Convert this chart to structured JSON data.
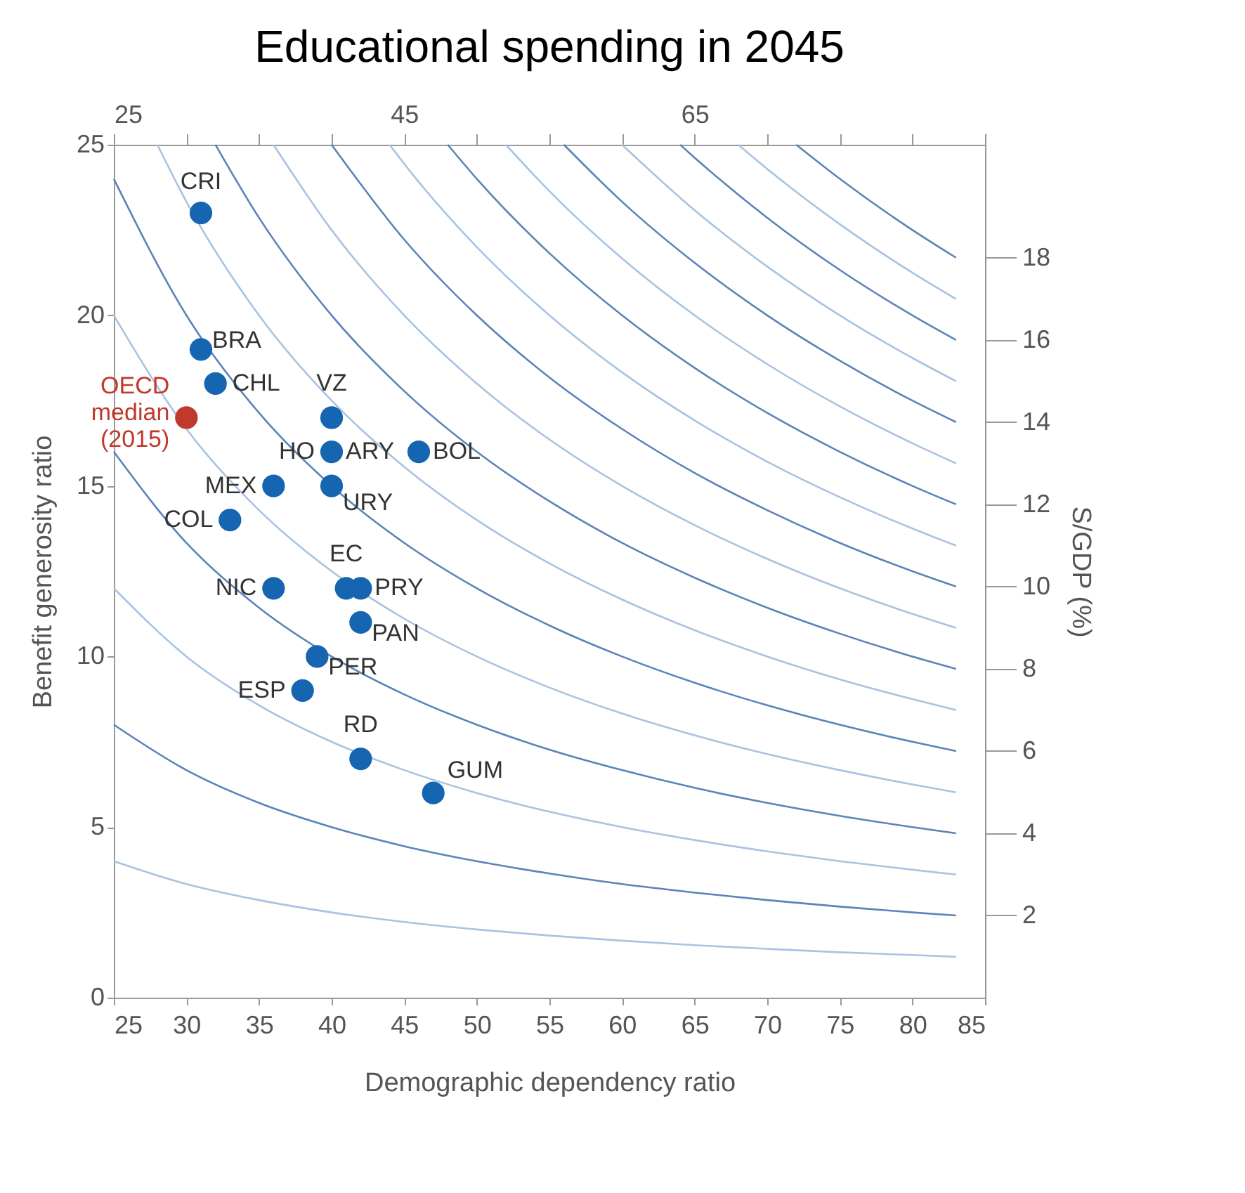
{
  "chart_data": {
    "type": "scatter",
    "title": "Educational spending in 2045",
    "xlabel": "Demographic dependency ratio",
    "ylabel": "Benefit generosity ratio",
    "y2label": "S/GDP (%)",
    "xlim": [
      25,
      85
    ],
    "xticks": [
      25,
      30,
      35,
      40,
      45,
      50,
      55,
      60,
      65,
      70,
      75,
      80,
      85
    ],
    "x2lim": [
      25,
      85
    ],
    "x2ticks": [
      25,
      {
        "value": 30,
        "label": null
      },
      {
        "value": 35,
        "label": null
      },
      {
        "value": 40,
        "label": null
      },
      45,
      {
        "value": 50,
        "label": null
      },
      {
        "value": 55,
        "label": null
      },
      {
        "value": 60,
        "label": null
      },
      65,
      {
        "value": 70,
        "label": null
      },
      {
        "value": 75,
        "label": null
      },
      {
        "value": 80,
        "label": null
      },
      {
        "value": 85,
        "label": null
      }
    ],
    "ylim": [
      0,
      25
    ],
    "yticks": [
      0,
      5,
      10,
      15,
      20,
      25
    ],
    "y2lim": [
      0,
      20.75
    ],
    "y2ticks": [
      2,
      4,
      6,
      8,
      10,
      12,
      14,
      16,
      18
    ],
    "grid": false,
    "line_style": "solid",
    "series": [
      {
        "type": "line",
        "color": "#a9c3e0",
        "x": [
          25,
          30,
          35,
          40,
          45,
          50,
          55,
          60,
          65,
          70,
          75,
          80,
          83
        ],
        "values": [
          4,
          3.33,
          2.86,
          2.5,
          2.22,
          2,
          1.82,
          1.67,
          1.54,
          1.43,
          1.33,
          1.25,
          1.2
        ]
      },
      {
        "type": "line",
        "color": "#5b84b8",
        "x": [
          25,
          30,
          35,
          40,
          45,
          50,
          55,
          60,
          65,
          70,
          75,
          80,
          83
        ],
        "values": [
          8,
          6.67,
          5.71,
          5,
          4.44,
          4,
          3.64,
          3.33,
          3.08,
          2.86,
          2.67,
          2.5,
          2.41
        ]
      },
      {
        "type": "line",
        "color": "#a9c3e0",
        "x": [
          25,
          30,
          35,
          40,
          45,
          50,
          55,
          60,
          65,
          70,
          75,
          80,
          83
        ],
        "values": [
          12,
          10,
          8.57,
          7.5,
          6.67,
          6,
          5.45,
          5,
          4.62,
          4.29,
          4,
          3.75,
          3.61
        ]
      },
      {
        "type": "line",
        "color": "#5b84b8",
        "x": [
          25,
          30,
          35,
          40,
          45,
          50,
          55,
          60,
          65,
          70,
          75,
          80,
          83
        ],
        "values": [
          16,
          13.33,
          11.43,
          10,
          8.89,
          8,
          7.27,
          6.67,
          6.15,
          5.71,
          5.33,
          5,
          4.82
        ]
      },
      {
        "type": "line",
        "color": "#a9c3e0",
        "x": [
          25,
          30,
          35,
          40,
          45,
          50,
          55,
          60,
          65,
          70,
          75,
          80,
          83
        ],
        "values": [
          20,
          16.67,
          14.29,
          12.5,
          11.11,
          10,
          9.09,
          8.33,
          7.69,
          7.14,
          6.67,
          6.25,
          6.02
        ]
      },
      {
        "type": "line",
        "color": "#5b84b8",
        "x": [
          25,
          30,
          35,
          40,
          45,
          50,
          55,
          60,
          65,
          70,
          75,
          80,
          83
        ],
        "values": [
          24,
          20,
          17.14,
          15,
          13.33,
          12,
          10.91,
          10,
          9.23,
          8.57,
          8,
          7.5,
          7.23
        ]
      },
      {
        "type": "line",
        "color": "#a9c3e0",
        "x": [
          28,
          30,
          35,
          40,
          45,
          50,
          55,
          60,
          65,
          70,
          75,
          80,
          83
        ],
        "values": [
          25,
          23.33,
          20,
          17.5,
          15.56,
          14,
          12.73,
          11.67,
          10.77,
          10,
          9.33,
          8.75,
          8.43
        ]
      },
      {
        "type": "line",
        "color": "#5b84b8",
        "x": [
          32,
          35,
          40,
          45,
          50,
          55,
          60,
          65,
          70,
          75,
          80,
          83
        ],
        "values": [
          25,
          22.86,
          20,
          17.78,
          16,
          14.55,
          13.33,
          12.31,
          11.43,
          10.67,
          10,
          9.64
        ]
      },
      {
        "type": "line",
        "color": "#a9c3e0",
        "x": [
          36,
          40,
          45,
          50,
          55,
          60,
          65,
          70,
          75,
          80,
          83
        ],
        "values": [
          25,
          22.5,
          20,
          18,
          16.36,
          15,
          13.85,
          12.86,
          12,
          11.25,
          10.84
        ]
      },
      {
        "type": "line",
        "color": "#5b84b8",
        "x": [
          40,
          45,
          50,
          55,
          60,
          65,
          70,
          75,
          80,
          83
        ],
        "values": [
          25,
          22.22,
          20,
          18.18,
          16.67,
          15.38,
          14.29,
          13.33,
          12.5,
          12.05
        ]
      },
      {
        "type": "line",
        "color": "#a9c3e0",
        "x": [
          44,
          45,
          50,
          55,
          60,
          65,
          70,
          75,
          80,
          83
        ],
        "values": [
          25,
          24.44,
          22,
          20,
          18.33,
          16.92,
          15.71,
          14.67,
          13.75,
          13.25
        ]
      },
      {
        "type": "line",
        "color": "#5b84b8",
        "x": [
          48,
          50,
          55,
          60,
          65,
          70,
          75,
          80,
          83
        ],
        "values": [
          25,
          24,
          21.82,
          20,
          18.46,
          17.14,
          16,
          15,
          14.46
        ]
      },
      {
        "type": "line",
        "color": "#a9c3e0",
        "x": [
          52,
          55,
          60,
          65,
          70,
          75,
          80,
          83
        ],
        "values": [
          25,
          23.64,
          21.67,
          20,
          18.57,
          17.33,
          16.25,
          15.66
        ]
      },
      {
        "type": "line",
        "color": "#5b84b8",
        "x": [
          56,
          60,
          65,
          70,
          75,
          80,
          83
        ],
        "values": [
          25,
          23.33,
          21.54,
          20,
          18.67,
          17.5,
          16.87
        ]
      },
      {
        "type": "line",
        "color": "#a9c3e0",
        "x": [
          60,
          65,
          70,
          75,
          80,
          83
        ],
        "values": [
          25,
          23.08,
          21.43,
          20,
          18.75,
          18.07
        ]
      },
      {
        "type": "line",
        "color": "#5b84b8",
        "x": [
          64,
          65,
          70,
          75,
          80,
          83
        ],
        "values": [
          25,
          24.62,
          22.86,
          21.33,
          20,
          19.28
        ]
      },
      {
        "type": "line",
        "color": "#a9c3e0",
        "x": [
          68,
          70,
          75,
          80,
          83
        ],
        "values": [
          25,
          24.29,
          22.67,
          21.25,
          20.48
        ]
      },
      {
        "type": "line",
        "color": "#5b84b8",
        "x": [
          72,
          75,
          80,
          83
        ],
        "values": [
          25,
          24,
          22.5,
          21.69
        ]
      },
      {
        "marker": "circle",
        "color": "#1565b0",
        "x": [
          31,
          31,
          32,
          40,
          40,
          46,
          40,
          36,
          33,
          36,
          41,
          42,
          42,
          39,
          38,
          42,
          47
        ],
        "values": [
          23,
          19,
          18,
          17,
          16,
          16,
          15,
          15,
          14,
          12,
          12,
          12,
          11,
          10,
          9,
          7,
          6
        ]
      },
      {
        "marker": "circle",
        "color": "#c0392b",
        "x": [
          30
        ],
        "values": [
          17
        ]
      }
    ],
    "annotations": [
      {
        "text": "CRI",
        "x": 31,
        "y": 23
      },
      {
        "text": "BRA",
        "x": 31,
        "y": 19
      },
      {
        "text": "CHL",
        "x": 32,
        "y": 18
      },
      {
        "text": "VZ",
        "x": 40,
        "y": 17
      },
      {
        "text": "HO",
        "x": 40,
        "y": 16
      },
      {
        "text": "ARY",
        "x": 40,
        "y": 16
      },
      {
        "text": "BOL",
        "x": 46,
        "y": 16
      },
      {
        "text": "URY",
        "x": 40,
        "y": 15
      },
      {
        "text": "MEX",
        "x": 36,
        "y": 15
      },
      {
        "text": "COL",
        "x": 33,
        "y": 14
      },
      {
        "text": "NIC",
        "x": 36,
        "y": 12
      },
      {
        "text": "EC",
        "x": 41,
        "y": 12
      },
      {
        "text": "PRY",
        "x": 42,
        "y": 12
      },
      {
        "text": "PAN",
        "x": 42,
        "y": 11
      },
      {
        "text": "PER",
        "x": 39,
        "y": 10
      },
      {
        "text": "ESP",
        "x": 38,
        "y": 9
      },
      {
        "text": "RD",
        "x": 42,
        "y": 7
      },
      {
        "text": "GUM",
        "x": 47,
        "y": 6
      },
      {
        "text": "OECD median (2015)",
        "x": 30,
        "y": 17
      }
    ]
  }
}
